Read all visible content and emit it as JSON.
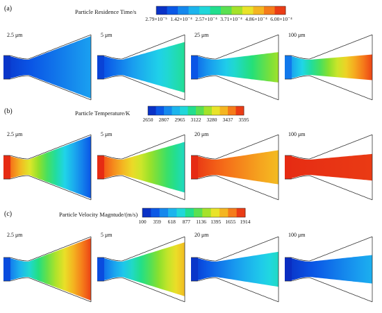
{
  "panels": [
    {
      "label": "(a)",
      "title": "Particle Residence Time/s",
      "ticks": [
        "2.79×10⁻⁵",
        "1.42×10⁻⁴",
        "2.57×10⁻⁴",
        "3.71×10⁻⁴",
        "4.86×10⁻⁴",
        "6.00×10⁻⁴"
      ],
      "cases": [
        {
          "size": "2.5 μm",
          "inlet_level": 0.05,
          "exit_level": 0.25,
          "spread": 1.0
        },
        {
          "size": "5 μm",
          "inlet_level": 0.08,
          "exit_level": 0.45,
          "spread": 0.75
        },
        {
          "size": "25 μm",
          "inlet_level": 0.12,
          "exit_level": 0.62,
          "spread": 0.32
        },
        {
          "size": "100 μm",
          "inlet_level": 0.18,
          "exit_level": 0.95,
          "spread": 0.22
        }
      ]
    },
    {
      "label": "(b)",
      "title": "Particle Temperature/K",
      "ticks": [
        "2650",
        "2807",
        "2965",
        "3122",
        "3280",
        "3437",
        "3595"
      ],
      "cases": [
        {
          "size": "2.5 μm",
          "inlet_level": 0.98,
          "exit_level": 0.12,
          "spread": 1.0
        },
        {
          "size": "5 μm",
          "inlet_level": 0.98,
          "exit_level": 0.4,
          "spread": 0.75
        },
        {
          "size": "20 μm",
          "inlet_level": 0.98,
          "exit_level": 0.78,
          "spread": 0.4
        },
        {
          "size": "100 μm",
          "inlet_level": 0.98,
          "exit_level": 0.96,
          "spread": 0.24
        }
      ]
    },
    {
      "label": "(c)",
      "title": "Particle Velocity Magntude/(m/s)",
      "ticks": [
        "100",
        "359",
        "618",
        "877",
        "1136",
        "1395",
        "1655",
        "1914"
      ],
      "cases": [
        {
          "size": "2.5 μm",
          "inlet_level": 0.1,
          "exit_level": 0.95,
          "spread": 1.0
        },
        {
          "size": "5 μm",
          "inlet_level": 0.1,
          "exit_level": 0.78,
          "spread": 0.82
        },
        {
          "size": "20 μm",
          "inlet_level": 0.05,
          "exit_level": 0.4,
          "spread": 0.42
        },
        {
          "size": "100 μm",
          "inlet_level": 0.03,
          "exit_level": 0.28,
          "spread": 0.28
        }
      ]
    }
  ]
}
